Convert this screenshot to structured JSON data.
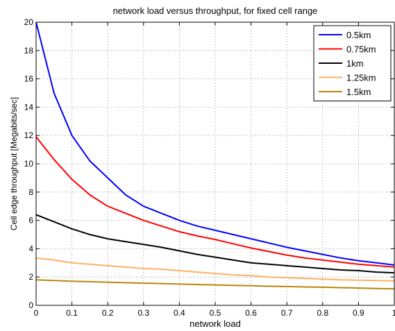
{
  "chart_data": {
    "type": "line",
    "title": "network load versus throughput, for fixed cell range",
    "xlabel": "network load",
    "ylabel": "Cell edge throughput [Megabits/sec]",
    "xlim": [
      0,
      1
    ],
    "ylim": [
      0,
      20
    ],
    "xticks": [
      0,
      0.1,
      0.2,
      0.3,
      0.4,
      0.5,
      0.6,
      0.7,
      0.8,
      0.9,
      1
    ],
    "xtick_labels": [
      "0",
      "0.1",
      "0.2",
      "0.3",
      "0.4",
      "0.5",
      "0.6",
      "0.7",
      "0.8",
      "0.9",
      "1"
    ],
    "yticks": [
      0,
      2,
      4,
      6,
      8,
      10,
      12,
      14,
      16,
      18,
      20
    ],
    "ytick_labels": [
      "0",
      "2",
      "4",
      "6",
      "8",
      "10",
      "12",
      "14",
      "16",
      "18",
      "20"
    ],
    "grid": true,
    "legend_position": "top-right",
    "x": [
      0,
      0.05,
      0.1,
      0.15,
      0.2,
      0.25,
      0.3,
      0.35,
      0.4,
      0.45,
      0.5,
      0.55,
      0.6,
      0.65,
      0.7,
      0.75,
      0.8,
      0.85,
      0.9,
      0.95,
      1.0
    ],
    "series": [
      {
        "name": "0.5km",
        "color": "#0000ff",
        "values": [
          20.0,
          15.0,
          12.0,
          10.2,
          9.0,
          7.8,
          7.0,
          6.5,
          6.0,
          5.6,
          5.3,
          5.0,
          4.7,
          4.4,
          4.1,
          3.85,
          3.6,
          3.35,
          3.15,
          3.0,
          2.85
        ]
      },
      {
        "name": "0.75km",
        "color": "#ff0000",
        "values": [
          11.9,
          10.3,
          8.9,
          7.8,
          7.0,
          6.5,
          6.0,
          5.6,
          5.2,
          4.9,
          4.65,
          4.35,
          4.05,
          3.8,
          3.55,
          3.35,
          3.2,
          3.05,
          2.9,
          2.8,
          2.7
        ]
      },
      {
        "name": "1km",
        "color": "#000000",
        "values": [
          6.4,
          5.9,
          5.4,
          5.0,
          4.7,
          4.5,
          4.3,
          4.1,
          3.85,
          3.6,
          3.4,
          3.2,
          3.0,
          2.9,
          2.8,
          2.7,
          2.6,
          2.5,
          2.45,
          2.35,
          2.3
        ]
      },
      {
        "name": "1.25km",
        "color": "#ffb060",
        "values": [
          3.35,
          3.2,
          3.0,
          2.9,
          2.8,
          2.7,
          2.6,
          2.55,
          2.45,
          2.35,
          2.25,
          2.15,
          2.1,
          2.0,
          1.95,
          1.9,
          1.85,
          1.8,
          1.78,
          1.75,
          1.72
        ]
      },
      {
        "name": "1.5km",
        "color": "#b8860b",
        "values": [
          1.8,
          1.75,
          1.7,
          1.67,
          1.63,
          1.6,
          1.57,
          1.54,
          1.5,
          1.47,
          1.44,
          1.41,
          1.38,
          1.35,
          1.33,
          1.3,
          1.28,
          1.25,
          1.22,
          1.19,
          1.16
        ]
      }
    ]
  }
}
